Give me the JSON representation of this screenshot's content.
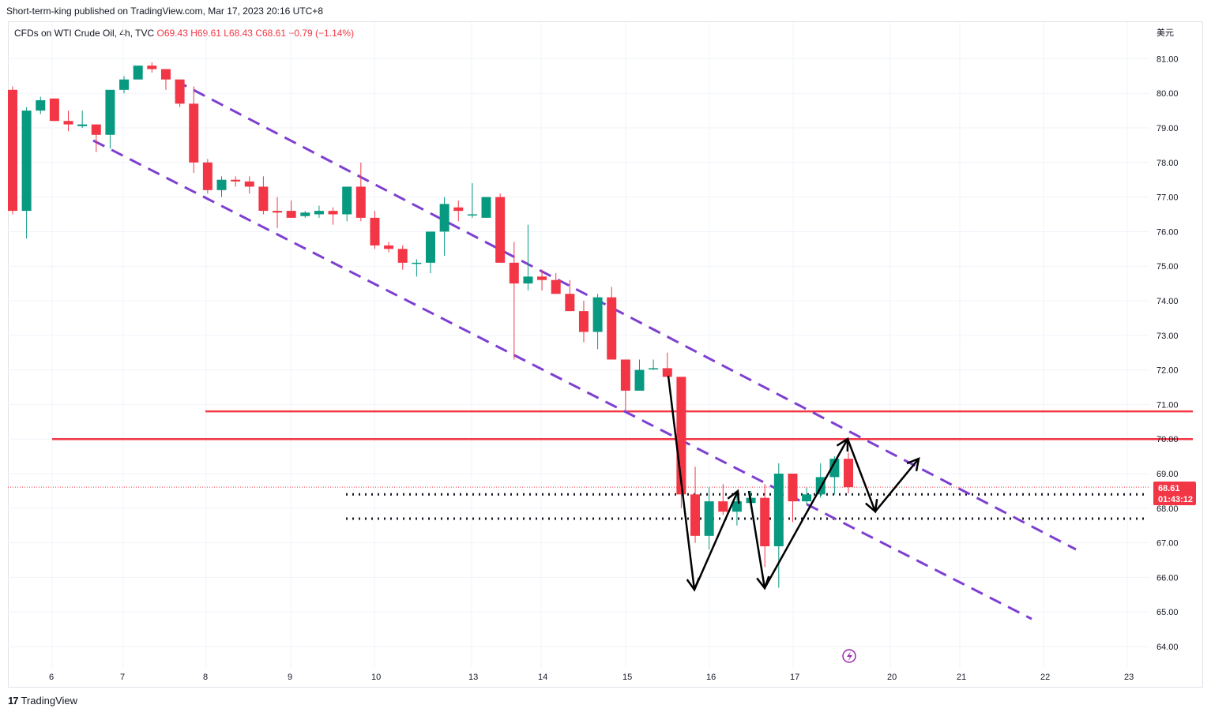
{
  "header": {
    "published": "Short-term-king published on TradingView.com, Mar 17, 2023 20:16 UTC+8"
  },
  "legend": {
    "symbol": "CFDs on WTI Crude Oil, 4h, TVC",
    "open": "O69.43",
    "high": "H69.61",
    "low": "L68.43",
    "close": "C68.61",
    "change": "−0.79 (−1.14%)"
  },
  "currency": "美元",
  "price_box": {
    "price": "68.61",
    "countdown": "01:43:12"
  },
  "footer": {
    "brand": "TradingView",
    "logo": "17"
  },
  "colors": {
    "up": "#089981",
    "down": "#f23645",
    "channel": "#7e3fd1",
    "level": "#f23645"
  },
  "chart_data": {
    "type": "candlestick",
    "y_ticks": [
      "64.00",
      "65.00",
      "66.00",
      "67.00",
      "68.00",
      "69.00",
      "70.00",
      "71.00",
      "72.00",
      "73.00",
      "74.00",
      "75.00",
      "76.00",
      "77.00",
      "78.00",
      "79.00",
      "80.00",
      "81.00"
    ],
    "ylim": [
      63.6,
      82.0
    ],
    "x_ticks": [
      "6",
      "7",
      "8",
      "9",
      "10",
      "13",
      "14",
      "15",
      "16",
      "17",
      "20",
      "21",
      "22",
      "23"
    ],
    "candles": [
      {
        "o": 80.1,
        "h": 80.2,
        "l": 76.5,
        "c": 76.6
      },
      {
        "o": 76.6,
        "h": 79.6,
        "l": 75.8,
        "c": 79.5
      },
      {
        "o": 79.5,
        "h": 79.9,
        "l": 79.4,
        "c": 79.8
      },
      {
        "o": 79.85,
        "h": 79.85,
        "l": 79.2,
        "c": 79.2
      },
      {
        "o": 79.2,
        "h": 79.5,
        "l": 78.9,
        "c": 79.1
      },
      {
        "o": 79.05,
        "h": 79.5,
        "l": 79.0,
        "c": 79.1
      },
      {
        "o": 79.1,
        "h": 79.1,
        "l": 78.3,
        "c": 78.8
      },
      {
        "o": 78.8,
        "h": 80.0,
        "l": 78.4,
        "c": 80.1
      },
      {
        "o": 80.1,
        "h": 80.5,
        "l": 80.0,
        "c": 80.4
      },
      {
        "o": 80.4,
        "h": 80.8,
        "l": 80.4,
        "c": 80.8
      },
      {
        "o": 80.8,
        "h": 80.9,
        "l": 80.6,
        "c": 80.7
      },
      {
        "o": 80.7,
        "h": 80.7,
        "l": 80.1,
        "c": 80.4
      },
      {
        "o": 80.4,
        "h": 80.4,
        "l": 79.6,
        "c": 79.7
      },
      {
        "o": 79.7,
        "h": 80.2,
        "l": 77.7,
        "c": 78.0
      },
      {
        "o": 78.0,
        "h": 78.1,
        "l": 77.1,
        "c": 77.2
      },
      {
        "o": 77.2,
        "h": 77.6,
        "l": 77.0,
        "c": 77.5
      },
      {
        "o": 77.5,
        "h": 77.6,
        "l": 77.3,
        "c": 77.45
      },
      {
        "o": 77.45,
        "h": 77.6,
        "l": 77.1,
        "c": 77.3
      },
      {
        "o": 77.3,
        "h": 77.6,
        "l": 76.5,
        "c": 76.6
      },
      {
        "o": 76.6,
        "h": 77.0,
        "l": 76.1,
        "c": 76.55
      },
      {
        "o": 76.6,
        "h": 76.9,
        "l": 76.4,
        "c": 76.4
      },
      {
        "o": 76.45,
        "h": 76.6,
        "l": 76.4,
        "c": 76.55
      },
      {
        "o": 76.5,
        "h": 76.75,
        "l": 76.4,
        "c": 76.6
      },
      {
        "o": 76.6,
        "h": 76.7,
        "l": 76.2,
        "c": 76.5
      },
      {
        "o": 76.5,
        "h": 77.3,
        "l": 76.3,
        "c": 77.3
      },
      {
        "o": 77.3,
        "h": 78.0,
        "l": 76.3,
        "c": 76.4
      },
      {
        "o": 76.4,
        "h": 76.6,
        "l": 75.5,
        "c": 75.6
      },
      {
        "o": 75.6,
        "h": 75.7,
        "l": 75.4,
        "c": 75.5
      },
      {
        "o": 75.5,
        "h": 75.6,
        "l": 74.9,
        "c": 75.1
      },
      {
        "o": 75.1,
        "h": 75.2,
        "l": 74.7,
        "c": 75.1
      },
      {
        "o": 75.1,
        "h": 76.0,
        "l": 74.8,
        "c": 76.0
      },
      {
        "o": 76.0,
        "h": 77.0,
        "l": 75.3,
        "c": 76.8
      },
      {
        "o": 76.7,
        "h": 76.9,
        "l": 76.3,
        "c": 76.6
      },
      {
        "o": 76.5,
        "h": 77.4,
        "l": 76.4,
        "c": 76.5
      },
      {
        "o": 76.4,
        "h": 77.0,
        "l": 76.4,
        "c": 77.0
      },
      {
        "o": 77.0,
        "h": 77.1,
        "l": 75.1,
        "c": 75.1
      },
      {
        "o": 75.1,
        "h": 75.7,
        "l": 72.3,
        "c": 74.5
      },
      {
        "o": 74.5,
        "h": 76.2,
        "l": 74.3,
        "c": 74.7
      },
      {
        "o": 74.7,
        "h": 74.9,
        "l": 74.3,
        "c": 74.6
      },
      {
        "o": 74.6,
        "h": 74.8,
        "l": 74.2,
        "c": 74.2
      },
      {
        "o": 74.2,
        "h": 74.6,
        "l": 73.7,
        "c": 73.7
      },
      {
        "o": 73.7,
        "h": 74.0,
        "l": 72.8,
        "c": 73.1
      },
      {
        "o": 73.1,
        "h": 74.2,
        "l": 72.6,
        "c": 74.1
      },
      {
        "o": 74.1,
        "h": 74.4,
        "l": 72.3,
        "c": 72.3
      },
      {
        "o": 72.3,
        "h": 72.3,
        "l": 70.8,
        "c": 71.4
      },
      {
        "o": 71.4,
        "h": 72.3,
        "l": 71.4,
        "c": 72.0
      },
      {
        "o": 72.05,
        "h": 72.3,
        "l": 72.0,
        "c": 72.05
      },
      {
        "o": 72.05,
        "h": 72.5,
        "l": 71.8,
        "c": 71.8
      },
      {
        "o": 71.8,
        "h": 71.8,
        "l": 68.0,
        "c": 68.4
      },
      {
        "o": 68.4,
        "h": 69.2,
        "l": 67.0,
        "c": 67.2
      },
      {
        "o": 67.2,
        "h": 68.6,
        "l": 66.8,
        "c": 68.2
      },
      {
        "o": 68.2,
        "h": 68.7,
        "l": 67.8,
        "c": 67.9
      },
      {
        "o": 67.9,
        "h": 68.5,
        "l": 67.5,
        "c": 68.2
      },
      {
        "o": 68.15,
        "h": 68.5,
        "l": 68.0,
        "c": 68.3
      },
      {
        "o": 68.3,
        "h": 68.7,
        "l": 66.3,
        "c": 66.9
      },
      {
        "o": 66.9,
        "h": 69.3,
        "l": 65.7,
        "c": 69.0
      },
      {
        "o": 69.0,
        "h": 69.0,
        "l": 67.6,
        "c": 68.2
      },
      {
        "o": 68.2,
        "h": 68.6,
        "l": 68.1,
        "c": 68.4
      },
      {
        "o": 68.4,
        "h": 69.3,
        "l": 68.3,
        "c": 68.9
      },
      {
        "o": 68.9,
        "h": 69.5,
        "l": 68.4,
        "c": 69.43
      },
      {
        "o": 69.43,
        "h": 69.61,
        "l": 68.43,
        "c": 68.61
      }
    ]
  }
}
